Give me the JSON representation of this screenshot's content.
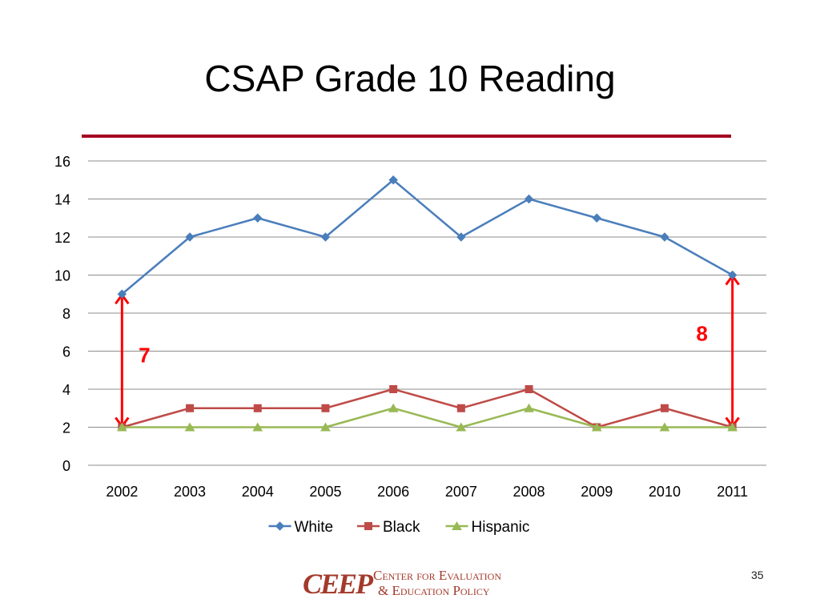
{
  "slide": {
    "title": "CSAP Grade 10 Reading",
    "page_number": "35",
    "accent_color": "#a50021",
    "logo": {
      "mark": "CEEP",
      "line1": "Center for Evaluation",
      "line2": "& Education Policy",
      "color": "#a33a2b"
    }
  },
  "chart_data": {
    "type": "line",
    "title": "",
    "xlabel": "",
    "ylabel": "",
    "categories": [
      "2002",
      "2003",
      "2004",
      "2005",
      "2006",
      "2007",
      "2008",
      "2009",
      "2010",
      "2011"
    ],
    "ylim": [
      0,
      16
    ],
    "yticks": [
      0,
      2,
      4,
      6,
      8,
      10,
      12,
      14,
      16
    ],
    "grid": true,
    "legend_position": "bottom",
    "series": [
      {
        "name": "White",
        "color": "#4a7ebb",
        "marker": "diamond",
        "values": [
          9,
          12,
          13,
          12,
          15,
          12,
          14,
          13,
          12,
          10
        ]
      },
      {
        "name": "Black",
        "color": "#be4b48",
        "marker": "square",
        "values": [
          2,
          3,
          3,
          3,
          4,
          3,
          4,
          2,
          3,
          2
        ]
      },
      {
        "name": "Hispanic",
        "color": "#98b954",
        "marker": "triangle",
        "values": [
          2,
          2,
          2,
          2,
          3,
          2,
          3,
          2,
          2,
          2
        ]
      }
    ],
    "annotations": [
      {
        "label": "7",
        "category": "2002",
        "from": 2,
        "to": 9,
        "color": "#ff0000"
      },
      {
        "label": "8",
        "category": "2011",
        "from": 2,
        "to": 10,
        "color": "#ff0000"
      }
    ]
  }
}
